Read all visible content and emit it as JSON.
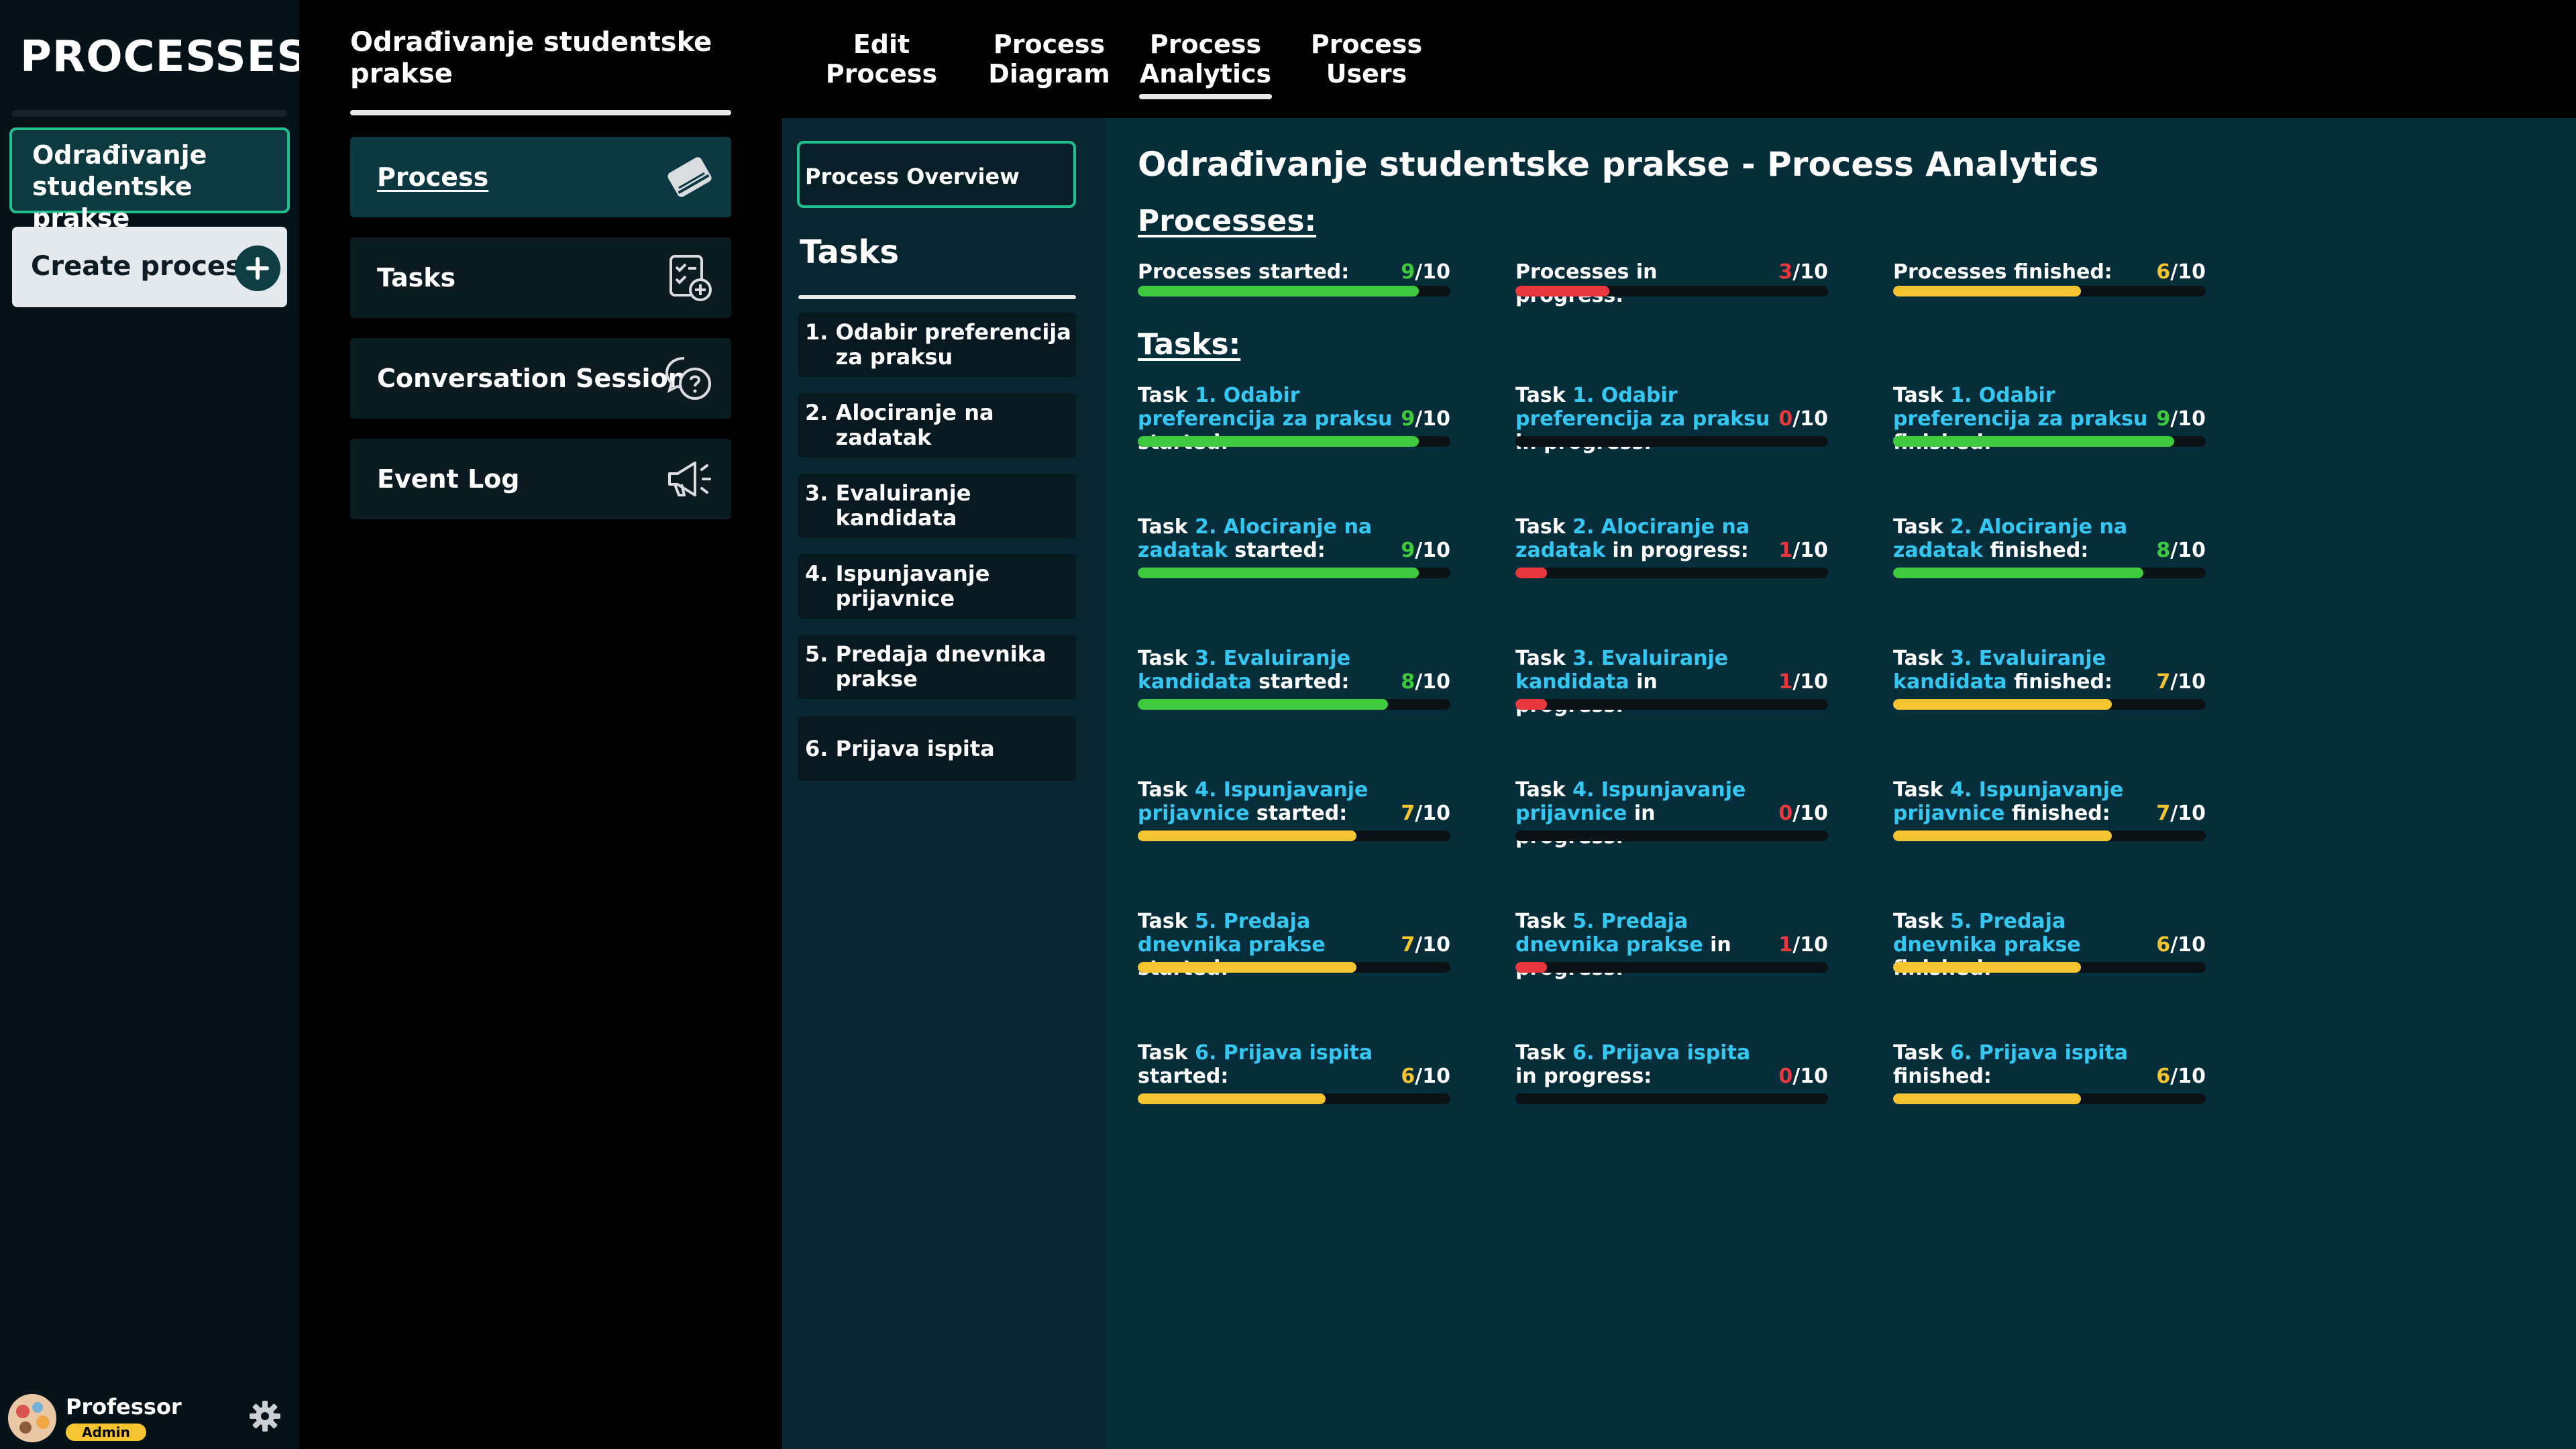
{
  "sidebar": {
    "title": "PROCESSES",
    "process_card": "Odrađivanje studentske prakse",
    "create_label": "Create process",
    "user": {
      "name": "Professor",
      "role": "Admin"
    }
  },
  "process_menu": {
    "process_name": "Odrađivanje studentske prakse",
    "items": [
      {
        "label": "Process",
        "icon": "book-icon",
        "active": true
      },
      {
        "label": "Tasks",
        "icon": "task-add-icon",
        "active": false
      },
      {
        "label": "Conversation Session",
        "icon": "chat-question-icon",
        "active": false
      },
      {
        "label": "Event Log",
        "icon": "megaphone-icon",
        "active": false
      }
    ]
  },
  "tabs": [
    {
      "label": "Edit Process",
      "active": false
    },
    {
      "label": "Process Diagram",
      "active": false
    },
    {
      "label": "Process Analytics",
      "active": true
    },
    {
      "label": "Process Users",
      "active": false
    }
  ],
  "tasks_panel": {
    "overview_label": "Process Overview",
    "heading": "Tasks",
    "items": [
      {
        "num": "1.",
        "name": "Odabir preferencija za praksu"
      },
      {
        "num": "2.",
        "name": "Alociranje na zadatak"
      },
      {
        "num": "3.",
        "name": "Evaluiranje kandidata"
      },
      {
        "num": "4.",
        "name": "Ispunjavanje prijavnice"
      },
      {
        "num": "5.",
        "name": "Predaja dnevnika prakse"
      },
      {
        "num": "6.",
        "name": "Prijava ispita"
      }
    ]
  },
  "analytics": {
    "title": "Odrađivanje studentske prakse - Process Analytics",
    "processes_heading": "Processes:",
    "tasks_heading": "Tasks:",
    "total": 10,
    "processes": [
      {
        "label": "Processes started:",
        "value": 9
      },
      {
        "label": "Processes in progress:",
        "value": 3
      },
      {
        "label": "Processes finished:",
        "value": 6
      }
    ],
    "task_prefix": "Task",
    "states": [
      "started:",
      "in progress:",
      "finished:"
    ],
    "task_stats": [
      {
        "task": "1. Odabir preferencija za praksu",
        "started": 9,
        "in_progress": 0,
        "finished": 9
      },
      {
        "task": "2. Alociranje na zadatak",
        "started": 9,
        "in_progress": 1,
        "finished": 8
      },
      {
        "task": "3. Evaluiranje kandidata",
        "started": 8,
        "in_progress": 1,
        "finished": 7
      },
      {
        "task": "4. Ispunjavanje prijavnice",
        "started": 7,
        "in_progress": 0,
        "finished": 7
      },
      {
        "task": "5. Predaja dnevnika prakse",
        "started": 7,
        "in_progress": 1,
        "finished": 6
      },
      {
        "task": "6. Prijava ispita",
        "started": 6,
        "in_progress": 0,
        "finished": 6
      }
    ]
  },
  "colors": {
    "accent_border": "#1fc08e",
    "highlight_text": "#33c7f2",
    "green": "#3ec93f",
    "yellow": "#f4c531",
    "red": "#e8383d"
  }
}
